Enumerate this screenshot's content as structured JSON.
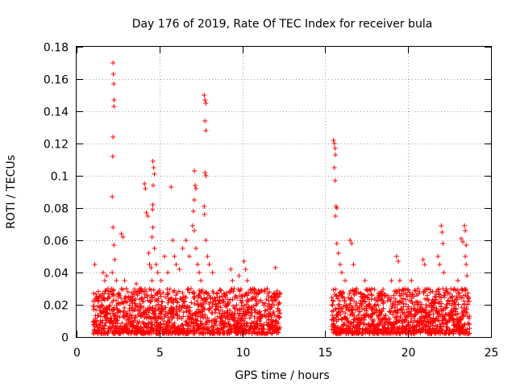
{
  "chart_data": {
    "type": "scatter",
    "title": "Day 176 of 2019, Rate Of TEC Index for receiver bula",
    "xlabel": "GPS time / hours",
    "ylabel": "ROTI / TECUs",
    "xlim": [
      0,
      25
    ],
    "ylim": [
      0,
      0.18
    ],
    "xticks": [
      0,
      5,
      10,
      15,
      20,
      25
    ],
    "xtick_labels": [
      "0",
      "5",
      "10",
      "15",
      "20",
      "25"
    ],
    "yticks": [
      0,
      0.02,
      0.04,
      0.06,
      0.08,
      0.1,
      0.12,
      0.14,
      0.16,
      0.18
    ],
    "ytick_labels": [
      "0",
      "0.02",
      "0.04",
      "0.06",
      "0.08",
      "0.1",
      "0.12",
      "0.14",
      "0.16",
      "0.18"
    ],
    "grid": true,
    "marker": "+",
    "color": "#ff0000",
    "series": [
      {
        "name": "ROTI",
        "points": [
          [
            1.1,
            0.045
          ],
          [
            1.2,
            0.025
          ],
          [
            1.3,
            0.022
          ],
          [
            1.4,
            0.018
          ],
          [
            1.6,
            0.04
          ],
          [
            1.7,
            0.035
          ],
          [
            1.8,
            0.038
          ],
          [
            1.9,
            0.03
          ],
          [
            2.1,
            0.03
          ],
          [
            2.15,
            0.04
          ],
          [
            2.2,
            0.17
          ],
          [
            2.22,
            0.163
          ],
          [
            2.24,
            0.157
          ],
          [
            2.26,
            0.147
          ],
          [
            2.25,
            0.143
          ],
          [
            2.2,
            0.124
          ],
          [
            2.18,
            0.112
          ],
          [
            2.15,
            0.087
          ],
          [
            2.2,
            0.068
          ],
          [
            2.25,
            0.057
          ],
          [
            2.3,
            0.048
          ],
          [
            2.4,
            0.035
          ],
          [
            2.5,
            0.025
          ],
          [
            2.7,
            0.064
          ],
          [
            2.8,
            0.062
          ],
          [
            2.9,
            0.035
          ],
          [
            3.0,
            0.03
          ],
          [
            3.1,
            0.028
          ],
          [
            3.6,
            0.033
          ],
          [
            3.8,
            0.03
          ],
          [
            3.9,
            0.028
          ],
          [
            4.1,
            0.095
          ],
          [
            4.15,
            0.092
          ],
          [
            4.2,
            0.077
          ],
          [
            4.3,
            0.075
          ],
          [
            4.35,
            0.052
          ],
          [
            4.4,
            0.045
          ],
          [
            4.5,
            0.043
          ],
          [
            4.55,
            0.035
          ],
          [
            4.6,
            0.109
          ],
          [
            4.65,
            0.105
          ],
          [
            4.7,
            0.101
          ],
          [
            4.62,
            0.094
          ],
          [
            4.6,
            0.082
          ],
          [
            4.58,
            0.079
          ],
          [
            4.6,
            0.068
          ],
          [
            4.55,
            0.062
          ],
          [
            4.7,
            0.055
          ],
          [
            4.8,
            0.045
          ],
          [
            4.9,
            0.04
          ],
          [
            5.1,
            0.035
          ],
          [
            5.3,
            0.05
          ],
          [
            5.5,
            0.04
          ],
          [
            5.7,
            0.093
          ],
          [
            5.8,
            0.06
          ],
          [
            5.9,
            0.05
          ],
          [
            6.0,
            0.045
          ],
          [
            6.2,
            0.042
          ],
          [
            6.4,
            0.055
          ],
          [
            6.6,
            0.06
          ],
          [
            6.8,
            0.05
          ],
          [
            6.9,
            0.03
          ],
          [
            7.1,
            0.103
          ],
          [
            7.15,
            0.094
          ],
          [
            7.2,
            0.092
          ],
          [
            7.1,
            0.085
          ],
          [
            7.05,
            0.078
          ],
          [
            7.0,
            0.069
          ],
          [
            7.1,
            0.066
          ],
          [
            7.2,
            0.055
          ],
          [
            7.3,
            0.045
          ],
          [
            7.4,
            0.04
          ],
          [
            7.5,
            0.035
          ],
          [
            7.7,
            0.15
          ],
          [
            7.75,
            0.147
          ],
          [
            7.8,
            0.145
          ],
          [
            7.75,
            0.134
          ],
          [
            7.8,
            0.128
          ],
          [
            7.75,
            0.102
          ],
          [
            7.8,
            0.1
          ],
          [
            7.7,
            0.081
          ],
          [
            7.72,
            0.076
          ],
          [
            7.8,
            0.06
          ],
          [
            7.9,
            0.05
          ],
          [
            8.0,
            0.045
          ],
          [
            8.2,
            0.04
          ],
          [
            9.3,
            0.042
          ],
          [
            9.4,
            0.035
          ],
          [
            9.5,
            0.03
          ],
          [
            9.8,
            0.038
          ],
          [
            10.1,
            0.047
          ],
          [
            10.2,
            0.042
          ],
          [
            10.3,
            0.035
          ],
          [
            10.8,
            0.025
          ],
          [
            11.0,
            0.022
          ],
          [
            11.5,
            0.03
          ],
          [
            11.8,
            0.02
          ],
          [
            12.0,
            0.043
          ],
          [
            12.2,
            0.025
          ],
          [
            15.5,
            0.122
          ],
          [
            15.55,
            0.12
          ],
          [
            15.6,
            0.117
          ],
          [
            15.62,
            0.113
          ],
          [
            15.55,
            0.105
          ],
          [
            15.6,
            0.097
          ],
          [
            15.65,
            0.081
          ],
          [
            15.7,
            0.08
          ],
          [
            15.62,
            0.075
          ],
          [
            15.7,
            0.058
          ],
          [
            15.8,
            0.052
          ],
          [
            15.9,
            0.045
          ],
          [
            16.0,
            0.04
          ],
          [
            16.2,
            0.035
          ],
          [
            16.5,
            0.06
          ],
          [
            16.6,
            0.058
          ],
          [
            16.7,
            0.045
          ],
          [
            16.9,
            0.03
          ],
          [
            17.4,
            0.035
          ],
          [
            17.8,
            0.03
          ],
          [
            18.2,
            0.027
          ],
          [
            18.6,
            0.025
          ],
          [
            19.0,
            0.035
          ],
          [
            19.3,
            0.05
          ],
          [
            19.4,
            0.047
          ],
          [
            19.5,
            0.035
          ],
          [
            19.8,
            0.03
          ],
          [
            20.2,
            0.035
          ],
          [
            20.6,
            0.03
          ],
          [
            20.9,
            0.048
          ],
          [
            21.0,
            0.045
          ],
          [
            21.2,
            0.03
          ],
          [
            21.8,
            0.05
          ],
          [
            21.9,
            0.045
          ],
          [
            22.0,
            0.069
          ],
          [
            22.05,
            0.065
          ],
          [
            22.1,
            0.058
          ],
          [
            22.15,
            0.04
          ],
          [
            22.3,
            0.03
          ],
          [
            22.8,
            0.03
          ],
          [
            23.0,
            0.035
          ],
          [
            23.2,
            0.061
          ],
          [
            23.3,
            0.059
          ],
          [
            23.4,
            0.069
          ],
          [
            23.45,
            0.066
          ],
          [
            23.5,
            0.057
          ],
          [
            23.45,
            0.05
          ],
          [
            23.5,
            0.045
          ],
          [
            23.55,
            0.038
          ],
          [
            23.6,
            0.022
          ]
        ]
      }
    ],
    "dense_bands": [
      {
        "x_start": 1.0,
        "x_end": 12.3,
        "y_min": 0.002,
        "y_max": 0.03
      },
      {
        "x_start": 15.4,
        "x_end": 23.7,
        "y_min": 0.002,
        "y_max": 0.03
      }
    ]
  }
}
